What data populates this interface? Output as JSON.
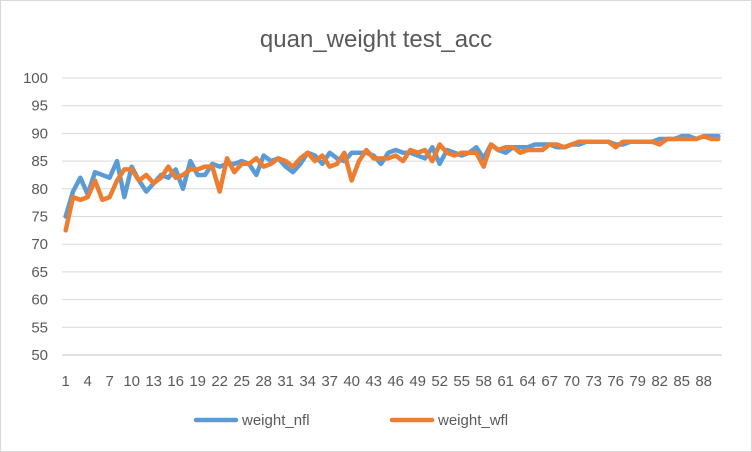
{
  "chart_data": {
    "type": "line",
    "title": "quan_weight test_acc",
    "xlabel": "",
    "ylabel": "",
    "ylim": [
      50,
      100
    ],
    "y_ticks": [
      50,
      55,
      60,
      65,
      70,
      75,
      80,
      85,
      90,
      95,
      100
    ],
    "x_tick_labels": [
      1,
      4,
      7,
      10,
      13,
      16,
      19,
      22,
      25,
      28,
      31,
      34,
      37,
      40,
      43,
      46,
      49,
      52,
      55,
      58,
      61,
      64,
      67,
      70,
      73,
      76,
      79,
      82,
      85,
      88
    ],
    "x": [
      1,
      2,
      3,
      4,
      5,
      6,
      7,
      8,
      9,
      10,
      11,
      12,
      13,
      14,
      15,
      16,
      17,
      18,
      19,
      20,
      21,
      22,
      23,
      24,
      25,
      26,
      27,
      28,
      29,
      30,
      31,
      32,
      33,
      34,
      35,
      36,
      37,
      38,
      39,
      40,
      41,
      42,
      43,
      44,
      45,
      46,
      47,
      48,
      49,
      50,
      51,
      52,
      53,
      54,
      55,
      56,
      57,
      58,
      59,
      60,
      61,
      62,
      63,
      64,
      65,
      66,
      67,
      68,
      69,
      70,
      71,
      72,
      73,
      74,
      75,
      76,
      77,
      78,
      79,
      80,
      81,
      82,
      83,
      84,
      85,
      86,
      87,
      88,
      89,
      90
    ],
    "grid": true,
    "legend_position": "bottom",
    "series": [
      {
        "name": "weight_nfl",
        "color": "#5b9bd5",
        "values": [
          75.0,
          79.5,
          82.0,
          79.0,
          83.0,
          82.5,
          82.0,
          85.0,
          78.5,
          84.0,
          81.5,
          79.5,
          81.0,
          82.5,
          82.0,
          83.5,
          80.0,
          85.0,
          82.5,
          82.5,
          84.5,
          84.0,
          84.5,
          84.5,
          85.0,
          84.5,
          82.5,
          86.0,
          85.0,
          85.5,
          84.0,
          83.0,
          84.5,
          86.5,
          86.0,
          84.5,
          86.5,
          85.5,
          85.0,
          86.5,
          86.5,
          86.5,
          86.0,
          84.5,
          86.5,
          87.0,
          86.5,
          86.5,
          86.0,
          85.5,
          87.5,
          84.5,
          87.0,
          86.5,
          86.0,
          86.5,
          87.5,
          85.5,
          88.0,
          87.0,
          86.5,
          87.5,
          87.5,
          87.5,
          88.0,
          88.0,
          88.0,
          87.5,
          87.5,
          88.0,
          88.0,
          88.5,
          88.5,
          88.5,
          88.5,
          88.0,
          88.0,
          88.5,
          88.5,
          88.5,
          88.5,
          89.0,
          89.0,
          89.0,
          89.5,
          89.5,
          89.0,
          89.5,
          89.5,
          89.5
        ]
      },
      {
        "name": "weight_wfl",
        "color": "#ed7d31",
        "values": [
          72.5,
          78.5,
          78.0,
          78.5,
          81.5,
          78.0,
          78.5,
          81.5,
          83.5,
          83.5,
          81.5,
          82.5,
          81.0,
          82.0,
          84.0,
          82.0,
          82.5,
          83.5,
          83.5,
          84.0,
          84.0,
          79.5,
          85.5,
          83.0,
          84.5,
          84.5,
          85.5,
          84.0,
          84.5,
          85.5,
          85.0,
          84.0,
          85.5,
          86.5,
          85.0,
          86.0,
          84.0,
          84.5,
          86.5,
          81.5,
          85.0,
          87.0,
          85.5,
          85.5,
          85.5,
          86.0,
          85.0,
          87.0,
          86.5,
          87.0,
          85.0,
          88.0,
          86.5,
          86.0,
          86.5,
          86.5,
          86.5,
          84.0,
          88.0,
          87.0,
          87.5,
          87.5,
          86.5,
          87.0,
          87.0,
          87.0,
          88.0,
          88.0,
          87.5,
          88.0,
          88.5,
          88.5,
          88.5,
          88.5,
          88.5,
          87.5,
          88.5,
          88.5,
          88.5,
          88.5,
          88.5,
          88.0,
          89.0,
          89.0,
          89.0,
          89.0,
          89.0,
          89.5,
          89.0,
          89.0
        ]
      }
    ]
  }
}
